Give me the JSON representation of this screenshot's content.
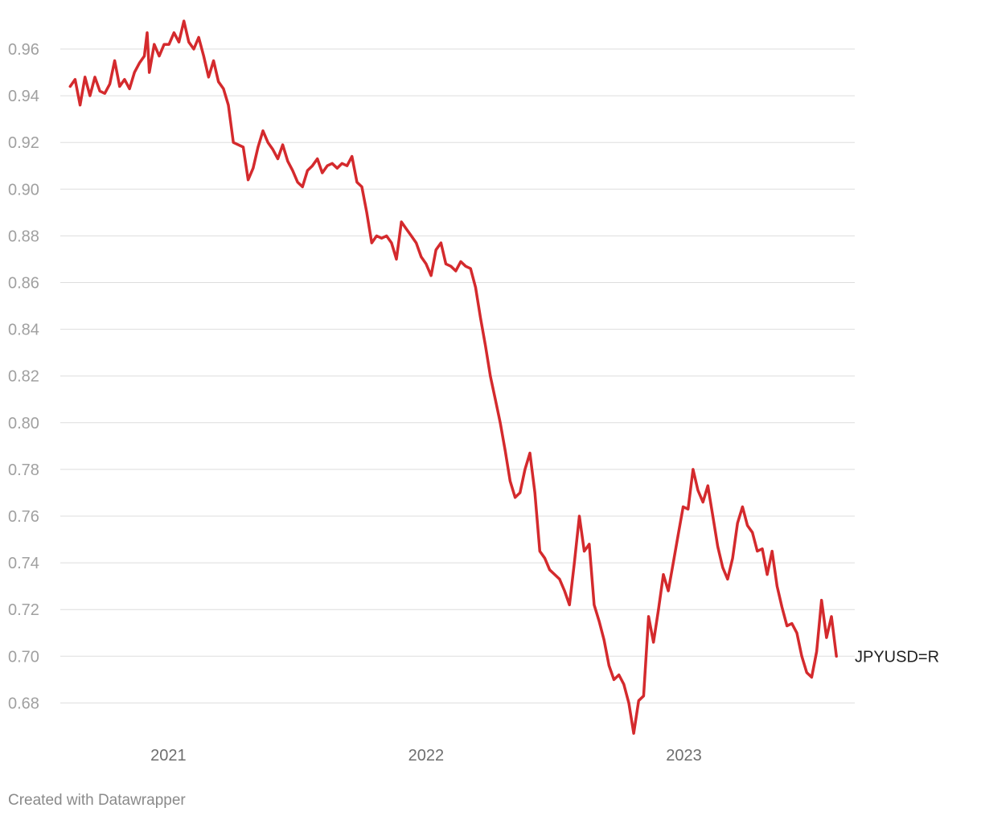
{
  "footer": {
    "credit": "Created with Datawrapper"
  },
  "chart_data": {
    "type": "line",
    "title": "",
    "xlabel": "",
    "ylabel": "",
    "ylim": [
      0.665,
      0.975
    ],
    "xlim": [
      "2020-08-01",
      "2023-08-31"
    ],
    "yticks": [
      "0.96",
      "0.94",
      "0.92",
      "0.90",
      "0.88",
      "0.86",
      "0.84",
      "0.82",
      "0.80",
      "0.78",
      "0.76",
      "0.74",
      "0.72",
      "0.70",
      "0.68"
    ],
    "xticks": [
      {
        "label": "2021",
        "date": "2021-01-01"
      },
      {
        "label": "2022",
        "date": "2022-01-01"
      },
      {
        "label": "2023",
        "date": "2023-01-01"
      }
    ],
    "grid": true,
    "legend": "none",
    "color": "#d42a2d",
    "series": [
      {
        "name": "JPYUSD=R",
        "points": [
          [
            "2020-08-15",
            0.944
          ],
          [
            "2020-08-22",
            0.947
          ],
          [
            "2020-08-29",
            0.936
          ],
          [
            "2020-09-05",
            0.948
          ],
          [
            "2020-09-12",
            0.94
          ],
          [
            "2020-09-19",
            0.948
          ],
          [
            "2020-09-26",
            0.942
          ],
          [
            "2020-10-03",
            0.941
          ],
          [
            "2020-10-10",
            0.945
          ],
          [
            "2020-10-17",
            0.955
          ],
          [
            "2020-10-24",
            0.944
          ],
          [
            "2020-10-31",
            0.947
          ],
          [
            "2020-11-07",
            0.943
          ],
          [
            "2020-11-14",
            0.95
          ],
          [
            "2020-11-21",
            0.954
          ],
          [
            "2020-11-28",
            0.957
          ],
          [
            "2020-12-02",
            0.967
          ],
          [
            "2020-12-05",
            0.95
          ],
          [
            "2020-12-12",
            0.962
          ],
          [
            "2020-12-19",
            0.957
          ],
          [
            "2020-12-26",
            0.962
          ],
          [
            "2021-01-02",
            0.962
          ],
          [
            "2021-01-09",
            0.967
          ],
          [
            "2021-01-16",
            0.963
          ],
          [
            "2021-01-23",
            0.972
          ],
          [
            "2021-01-30",
            0.963
          ],
          [
            "2021-02-06",
            0.96
          ],
          [
            "2021-02-13",
            0.965
          ],
          [
            "2021-02-20",
            0.957
          ],
          [
            "2021-02-27",
            0.948
          ],
          [
            "2021-03-06",
            0.955
          ],
          [
            "2021-03-13",
            0.946
          ],
          [
            "2021-03-20",
            0.943
          ],
          [
            "2021-03-27",
            0.936
          ],
          [
            "2021-04-03",
            0.92
          ],
          [
            "2021-04-10",
            0.919
          ],
          [
            "2021-04-17",
            0.918
          ],
          [
            "2021-04-24",
            0.904
          ],
          [
            "2021-05-01",
            0.909
          ],
          [
            "2021-05-08",
            0.918
          ],
          [
            "2021-05-15",
            0.925
          ],
          [
            "2021-05-22",
            0.92
          ],
          [
            "2021-05-29",
            0.917
          ],
          [
            "2021-06-05",
            0.913
          ],
          [
            "2021-06-12",
            0.919
          ],
          [
            "2021-06-19",
            0.912
          ],
          [
            "2021-06-26",
            0.908
          ],
          [
            "2021-07-03",
            0.903
          ],
          [
            "2021-07-10",
            0.901
          ],
          [
            "2021-07-17",
            0.908
          ],
          [
            "2021-07-24",
            0.91
          ],
          [
            "2021-07-31",
            0.913
          ],
          [
            "2021-08-07",
            0.907
          ],
          [
            "2021-08-14",
            0.91
          ],
          [
            "2021-08-21",
            0.911
          ],
          [
            "2021-08-28",
            0.909
          ],
          [
            "2021-09-04",
            0.911
          ],
          [
            "2021-09-11",
            0.91
          ],
          [
            "2021-09-18",
            0.914
          ],
          [
            "2021-09-25",
            0.903
          ],
          [
            "2021-10-02",
            0.901
          ],
          [
            "2021-10-09",
            0.89
          ],
          [
            "2021-10-16",
            0.877
          ],
          [
            "2021-10-23",
            0.88
          ],
          [
            "2021-10-30",
            0.879
          ],
          [
            "2021-11-06",
            0.88
          ],
          [
            "2021-11-13",
            0.877
          ],
          [
            "2021-11-20",
            0.87
          ],
          [
            "2021-11-27",
            0.886
          ],
          [
            "2021-12-04",
            0.883
          ],
          [
            "2021-12-11",
            0.88
          ],
          [
            "2021-12-18",
            0.877
          ],
          [
            "2021-12-25",
            0.871
          ],
          [
            "2022-01-01",
            0.868
          ],
          [
            "2022-01-08",
            0.863
          ],
          [
            "2022-01-15",
            0.874
          ],
          [
            "2022-01-22",
            0.877
          ],
          [
            "2022-01-29",
            0.868
          ],
          [
            "2022-02-05",
            0.867
          ],
          [
            "2022-02-12",
            0.865
          ],
          [
            "2022-02-19",
            0.869
          ],
          [
            "2022-02-26",
            0.867
          ],
          [
            "2022-03-05",
            0.866
          ],
          [
            "2022-03-12",
            0.858
          ],
          [
            "2022-03-19",
            0.845
          ],
          [
            "2022-03-26",
            0.833
          ],
          [
            "2022-04-02",
            0.82
          ],
          [
            "2022-04-09",
            0.81
          ],
          [
            "2022-04-16",
            0.8
          ],
          [
            "2022-04-23",
            0.788
          ],
          [
            "2022-04-30",
            0.775
          ],
          [
            "2022-05-07",
            0.768
          ],
          [
            "2022-05-14",
            0.77
          ],
          [
            "2022-05-21",
            0.78
          ],
          [
            "2022-05-28",
            0.787
          ],
          [
            "2022-06-04",
            0.77
          ],
          [
            "2022-06-11",
            0.745
          ],
          [
            "2022-06-18",
            0.742
          ],
          [
            "2022-06-25",
            0.737
          ],
          [
            "2022-07-02",
            0.735
          ],
          [
            "2022-07-09",
            0.733
          ],
          [
            "2022-07-16",
            0.728
          ],
          [
            "2022-07-23",
            0.722
          ],
          [
            "2022-07-30",
            0.74
          ],
          [
            "2022-08-06",
            0.76
          ],
          [
            "2022-08-13",
            0.745
          ],
          [
            "2022-08-20",
            0.748
          ],
          [
            "2022-08-27",
            0.722
          ],
          [
            "2022-09-03",
            0.715
          ],
          [
            "2022-09-10",
            0.707
          ],
          [
            "2022-09-17",
            0.696
          ],
          [
            "2022-09-24",
            0.69
          ],
          [
            "2022-10-01",
            0.692
          ],
          [
            "2022-10-08",
            0.688
          ],
          [
            "2022-10-15",
            0.68
          ],
          [
            "2022-10-22",
            0.667
          ],
          [
            "2022-10-29",
            0.681
          ],
          [
            "2022-11-05",
            0.683
          ],
          [
            "2022-11-12",
            0.717
          ],
          [
            "2022-11-19",
            0.706
          ],
          [
            "2022-11-26",
            0.72
          ],
          [
            "2022-12-03",
            0.735
          ],
          [
            "2022-12-10",
            0.728
          ],
          [
            "2022-12-17",
            0.74
          ],
          [
            "2022-12-24",
            0.752
          ],
          [
            "2022-12-31",
            0.764
          ],
          [
            "2023-01-07",
            0.763
          ],
          [
            "2023-01-14",
            0.78
          ],
          [
            "2023-01-21",
            0.771
          ],
          [
            "2023-01-28",
            0.766
          ],
          [
            "2023-02-04",
            0.773
          ],
          [
            "2023-02-11",
            0.76
          ],
          [
            "2023-02-18",
            0.747
          ],
          [
            "2023-02-25",
            0.738
          ],
          [
            "2023-03-04",
            0.733
          ],
          [
            "2023-03-11",
            0.742
          ],
          [
            "2023-03-18",
            0.757
          ],
          [
            "2023-03-25",
            0.764
          ],
          [
            "2023-04-01",
            0.756
          ],
          [
            "2023-04-08",
            0.753
          ],
          [
            "2023-04-15",
            0.745
          ],
          [
            "2023-04-22",
            0.746
          ],
          [
            "2023-04-29",
            0.735
          ],
          [
            "2023-05-06",
            0.745
          ],
          [
            "2023-05-13",
            0.73
          ],
          [
            "2023-05-20",
            0.721
          ],
          [
            "2023-05-27",
            0.713
          ],
          [
            "2023-06-03",
            0.714
          ],
          [
            "2023-06-10",
            0.71
          ],
          [
            "2023-06-17",
            0.7
          ],
          [
            "2023-06-24",
            0.693
          ],
          [
            "2023-07-01",
            0.691
          ],
          [
            "2023-07-08",
            0.702
          ],
          [
            "2023-07-15",
            0.724
          ],
          [
            "2023-07-22",
            0.708
          ],
          [
            "2023-07-29",
            0.717
          ],
          [
            "2023-08-05",
            0.7
          ]
        ]
      }
    ]
  }
}
